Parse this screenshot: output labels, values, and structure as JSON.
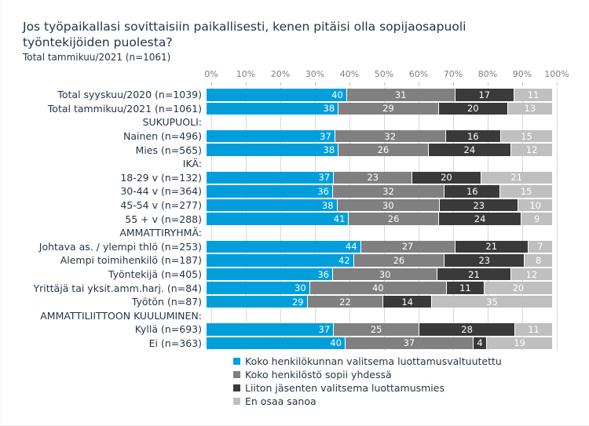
{
  "title": "Jos työpaikallasi sovittaisiin paikallisesti, kenen pitäisi olla sopijaosapuoli työntekijöiden puolesta?",
  "subtitle": "Total tammikuu/2021  (n=1061)",
  "colors": {
    "series": [
      "#009FDB",
      "#808080",
      "#3A3A3A",
      "#BFBFBF"
    ],
    "grid": "#d9d9d9",
    "axis_text": "#7f7f7f",
    "label_text": "#263548",
    "value_text": "#ffffff"
  },
  "chart_data": {
    "type": "bar",
    "stacked": true,
    "orientation": "horizontal",
    "title": "Jos työpaikallasi sovittaisiin paikallisesti, kenen pitäisi olla sopijaosapuoli työntekijöiden puolesta?",
    "subtitle": "Total tammikuu/2021  (n=1061)",
    "unit": "%",
    "x_axis": {
      "range": [
        0,
        100
      ],
      "ticks": [
        "0%",
        "10%",
        "20%",
        "30%",
        "40%",
        "50%",
        "60%",
        "70%",
        "80%",
        "90%",
        "100%"
      ],
      "grid": true
    },
    "legend_position": "bottom",
    "legend": [
      {
        "label": "Koko henkilökunnan valitsema luottamusvaltuutettu",
        "color": "#009FDB"
      },
      {
        "label": "Koko henkilöstö sopii yhdessä",
        "color": "#808080"
      },
      {
        "label": "Liiton jäsenten valitsema luottamusmies",
        "color": "#3A3A3A"
      },
      {
        "label": "En osaa sanoa",
        "color": "#BFBFBF"
      }
    ],
    "rows": [
      {
        "label": "Total syyskuu/2020 (n=1039)",
        "values": [
          40,
          31,
          17,
          11
        ]
      },
      {
        "label": "Total tammikuu/2021 (n=1061)",
        "values": [
          38,
          29,
          20,
          13
        ]
      },
      {
        "label": "SUKUPUOLI:",
        "values": null
      },
      {
        "label": "Nainen (n=496)",
        "values": [
          37,
          32,
          16,
          15
        ]
      },
      {
        "label": "Mies (n=565)",
        "values": [
          38,
          26,
          24,
          12
        ]
      },
      {
        "label": "IKÄ:",
        "values": null
      },
      {
        "label": "18-29 v (n=132)",
        "values": [
          37,
          23,
          20,
          21
        ]
      },
      {
        "label": "30-44 v (n=364)",
        "values": [
          36,
          32,
          16,
          15
        ]
      },
      {
        "label": "45-54 v (n=277)",
        "values": [
          38,
          30,
          23,
          10
        ]
      },
      {
        "label": "55 + v (n=288)",
        "values": [
          41,
          26,
          24,
          9
        ]
      },
      {
        "label": "AMMATTIRYHMÄ:",
        "values": null
      },
      {
        "label": "Johtava as. / ylempi thlö (n=253)",
        "values": [
          44,
          27,
          21,
          7
        ]
      },
      {
        "label": "Alempi toimihenkilö (n=187)",
        "values": [
          42,
          26,
          23,
          8
        ]
      },
      {
        "label": "Työntekijä (n=405)",
        "values": [
          36,
          30,
          21,
          12
        ]
      },
      {
        "label": "Yrittäjä tai yksit.amm.harj. (n=84)",
        "values": [
          30,
          40,
          11,
          20
        ]
      },
      {
        "label": "Työtön (n=87)",
        "values": [
          29,
          22,
          14,
          35
        ]
      },
      {
        "label": "AMMATTILIITTOON KUULUMINEN:",
        "values": null
      },
      {
        "label": "Kyllä (n=693)",
        "values": [
          37,
          25,
          28,
          11
        ]
      },
      {
        "label": "Ei (n=363)",
        "values": [
          40,
          37,
          4,
          19
        ]
      }
    ]
  }
}
